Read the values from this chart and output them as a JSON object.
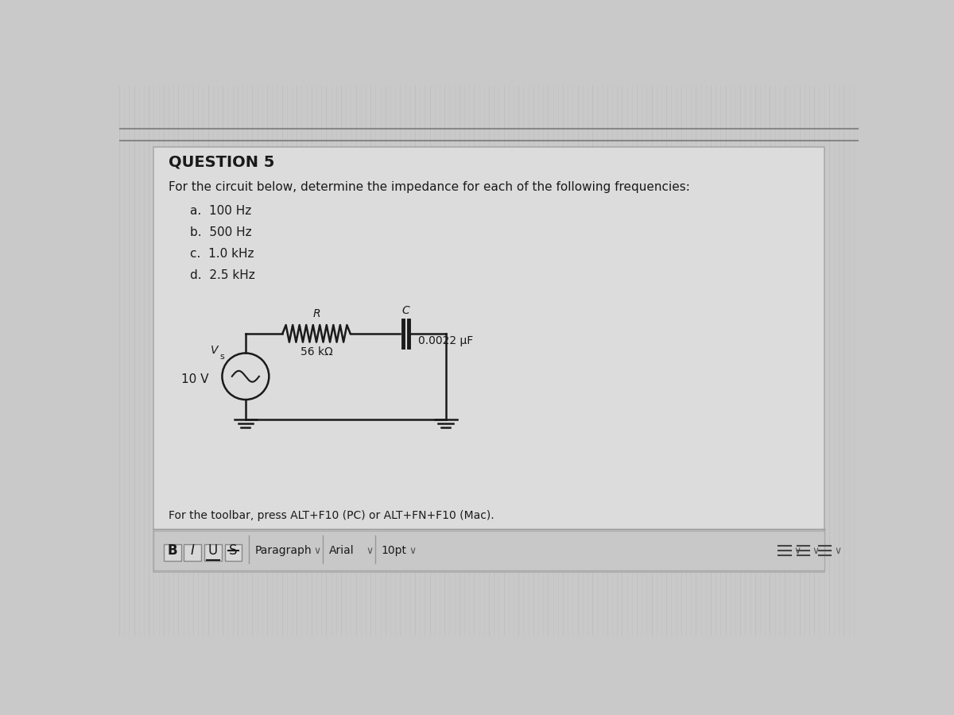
{
  "title": "QUESTION 5",
  "question_text": "For the circuit below, determine the impedance for each of the following frequencies:",
  "items": [
    "a.  100 Hz",
    "b.  500 Hz",
    "c.  1.0 kHz",
    "d.  2.5 kHz"
  ],
  "source_voltage": "10 V",
  "source_subscript": "s",
  "resistor_label": "R",
  "resistor_value": "56 kΩ",
  "capacitor_label": "C",
  "capacitor_value": "0.0022 μF",
  "toolbar_text": "For the toolbar, press ALT+F10 (PC) or ALT+FN+F10 (Mac).",
  "bg_color": "#c9c9c9",
  "content_bg": "#d8d8d8",
  "text_color": "#1a1a1a",
  "circuit_color": "#1a1a1a",
  "toolbar_bg": "#c0c0c0",
  "line_color": "#888888"
}
